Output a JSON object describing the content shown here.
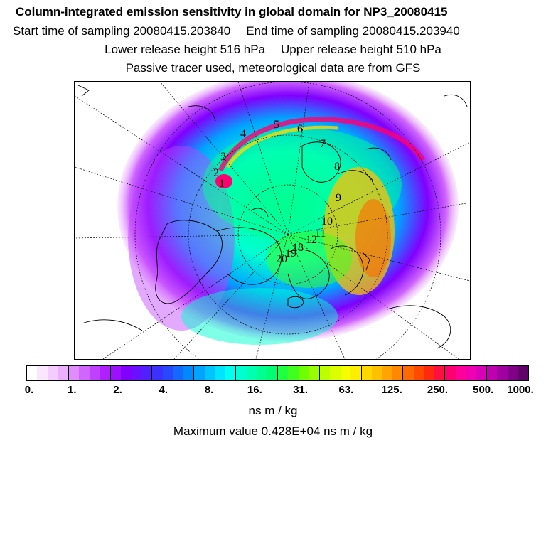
{
  "header": {
    "title": "Column-integrated emission sensitivity in global domain for NP3_20080415",
    "start_label": "Start time of sampling 20080415.203840",
    "end_label": "End time of sampling 20080415.203940",
    "lower_label": "Lower release height  516 hPa",
    "upper_label": "Upper release height  510 hPa",
    "tracer_note": "Passive tracer used, meteorological data are from GFS"
  },
  "map": {
    "projection": "polar-stereographic-north",
    "trajectory_labels": [
      "1",
      "2",
      "3",
      "4",
      "5",
      "6",
      "7",
      "8",
      "9",
      "10",
      "11",
      "12",
      "18",
      "19",
      "20"
    ]
  },
  "colorbar": {
    "tick_labels": [
      "0.",
      "1.",
      "2.",
      "4.",
      "8.",
      "16.",
      "31.",
      "63.",
      "125.",
      "250.",
      "500.",
      "1000."
    ],
    "colors": [
      "#ffffff",
      "#fbe6ff",
      "#f4ccff",
      "#ecb0ff",
      "#e08cff",
      "#d066ff",
      "#c040ff",
      "#b020ff",
      "#9c10ff",
      "#8000ff",
      "#6a10ff",
      "#5020ff",
      "#3c30ff",
      "#2848ff",
      "#1468ff",
      "#0088ff",
      "#00a4ff",
      "#00c4ff",
      "#00e4ff",
      "#00fff0",
      "#00ffd0",
      "#00ffb0",
      "#00ff90",
      "#00ff70",
      "#20ff40",
      "#40ff20",
      "#70ff00",
      "#98ff00",
      "#bcff00",
      "#dcff00",
      "#f4ff00",
      "#ffee00",
      "#ffd800",
      "#ffc000",
      "#ffa400",
      "#ff8800",
      "#ff6a00",
      "#ff4a00",
      "#ff2a10",
      "#ff1040",
      "#ff0070",
      "#ff0098",
      "#f000b0",
      "#d800b8",
      "#c000b0",
      "#a000a0",
      "#800088",
      "#600068"
    ]
  },
  "units": "ns m / kg",
  "max_value": "Maximum value  0.428E+04 ns m / kg"
}
